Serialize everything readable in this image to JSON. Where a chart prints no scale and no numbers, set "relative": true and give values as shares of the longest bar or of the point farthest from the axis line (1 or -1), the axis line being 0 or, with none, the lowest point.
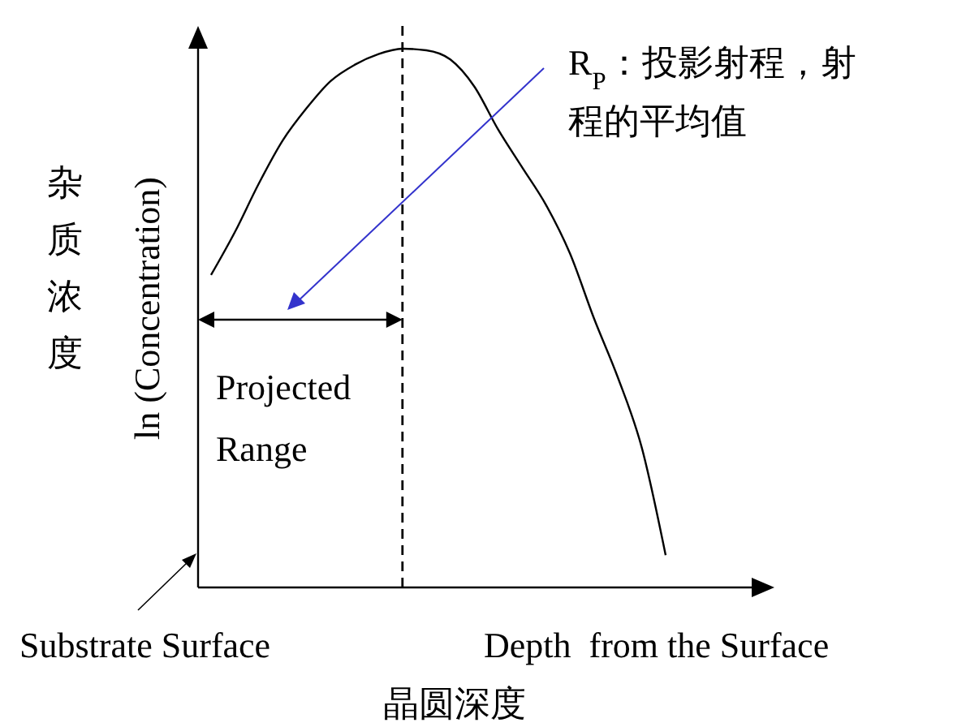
{
  "chart_data": {
    "type": "line",
    "relative": true,
    "categories": [
      null,
      null,
      null,
      null,
      null,
      null,
      null,
      null,
      null,
      null,
      null,
      null,
      null,
      null,
      null,
      null,
      null,
      null,
      null,
      null
    ],
    "values": [
      0.58,
      0.66,
      0.75,
      0.83,
      0.89,
      0.94,
      0.97,
      0.99,
      1,
      0.997,
      0.98,
      0.93,
      0.85,
      0.78,
      0.71,
      0.62,
      0.5,
      0.39,
      0.26,
      0.06
    ],
    "color": "#000000",
    "xlabel": "晶圆深度",
    "ylabel": "ln (Concentration)",
    "annotations": [
      "R$_{P}$：投影射程，射程的平均值",
      "Projected Range",
      "Substrate Surface",
      "Depth  from the Surface",
      "杂质浓度"
    ]
  }
}
